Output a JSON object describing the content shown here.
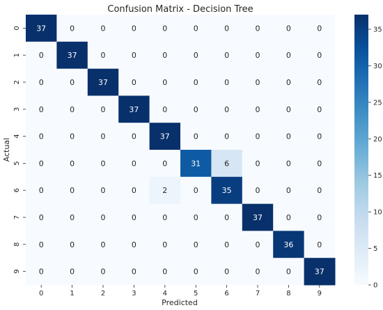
{
  "chart_data": {
    "type": "heatmap",
    "title": "Confusion Matrix - Decision Tree",
    "xlabel": "Predicted",
    "ylabel": "Actual",
    "x_tick_labels": [
      "0",
      "1",
      "2",
      "3",
      "4",
      "5",
      "6",
      "7",
      "8",
      "9"
    ],
    "y_tick_labels": [
      "0",
      "1",
      "2",
      "3",
      "4",
      "5",
      "6",
      "7",
      "8",
      "9"
    ],
    "matrix": [
      [
        37,
        0,
        0,
        0,
        0,
        0,
        0,
        0,
        0,
        0
      ],
      [
        0,
        37,
        0,
        0,
        0,
        0,
        0,
        0,
        0,
        0
      ],
      [
        0,
        0,
        37,
        0,
        0,
        0,
        0,
        0,
        0,
        0
      ],
      [
        0,
        0,
        0,
        37,
        0,
        0,
        0,
        0,
        0,
        0
      ],
      [
        0,
        0,
        0,
        0,
        37,
        0,
        0,
        0,
        0,
        0
      ],
      [
        0,
        0,
        0,
        0,
        0,
        31,
        6,
        0,
        0,
        0
      ],
      [
        0,
        0,
        0,
        0,
        2,
        0,
        35,
        0,
        0,
        0
      ],
      [
        0,
        0,
        0,
        0,
        0,
        0,
        0,
        37,
        0,
        0
      ],
      [
        0,
        0,
        0,
        0,
        0,
        0,
        0,
        0,
        36,
        0
      ],
      [
        0,
        0,
        0,
        0,
        0,
        0,
        0,
        0,
        0,
        37
      ]
    ],
    "annotations": true,
    "colormap": "Blues",
    "colorbar": {
      "min": 0,
      "max": 37,
      "ticks": [
        0,
        5,
        10,
        15,
        20,
        25,
        30,
        35
      ]
    },
    "colors": {
      "low": "#f7fbff",
      "high": "#08306b",
      "text_dark": "#262626",
      "text_light": "#ffffff"
    }
  }
}
